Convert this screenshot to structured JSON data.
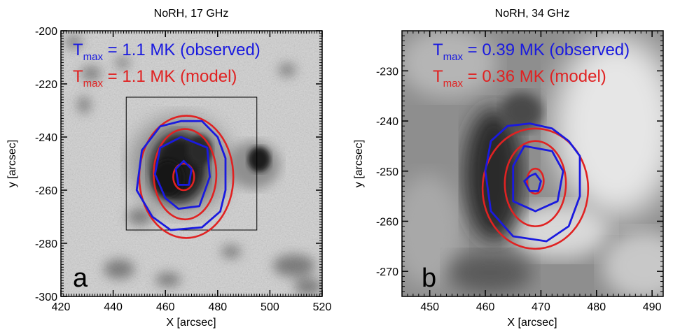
{
  "chart_data": [
    {
      "type": "contour",
      "title": "NoRH, 17 GHz",
      "xlabel": "X [arcsec]",
      "ylabel": "y [arcsec]",
      "xlim": [
        420,
        520
      ],
      "ylim": [
        -300,
        -200
      ],
      "xticks": [
        420,
        440,
        460,
        480,
        500,
        520
      ],
      "yticks": [
        -300,
        -280,
        -260,
        -240,
        -220,
        -200
      ],
      "panel_label": "a",
      "background": "grayscale brightness map (sunspot)",
      "annotations": [
        {
          "prefix": "T",
          "sub": "max",
          "text": " = 1.1 MK (observed)",
          "color": "#1a1adf"
        },
        {
          "prefix": "T",
          "sub": "max",
          "text": " = 1.1 MK (model)",
          "color": "#e02222"
        }
      ],
      "box": {
        "x": [
          445,
          495
        ],
        "y": [
          -275,
          -225
        ]
      },
      "model_contours": [
        {
          "center": [
            468,
            -255
          ],
          "rx": 18,
          "ry": 23
        },
        {
          "center": [
            467.5,
            -254
          ],
          "rx": 12,
          "ry": 17
        },
        {
          "center": [
            467,
            -255
          ],
          "rx": 4,
          "ry": 5
        }
      ],
      "observed_contours": [
        [
          [
            455,
            -270
          ],
          [
            449,
            -260
          ],
          [
            451,
            -245
          ],
          [
            458,
            -236
          ],
          [
            466,
            -234
          ],
          [
            474,
            -234
          ],
          [
            480,
            -240
          ],
          [
            483,
            -248
          ],
          [
            483,
            -260
          ],
          [
            481,
            -268
          ],
          [
            474,
            -274
          ],
          [
            462,
            -275
          ]
        ],
        [
          [
            460,
            -263
          ],
          [
            456,
            -254
          ],
          [
            458,
            -244
          ],
          [
            466,
            -240
          ],
          [
            476,
            -244
          ],
          [
            477,
            -255
          ],
          [
            473,
            -266
          ],
          [
            465,
            -267
          ]
        ],
        [
          [
            465,
            -258
          ],
          [
            464,
            -252
          ],
          [
            467,
            -249
          ],
          [
            470,
            -252
          ],
          [
            469,
            -258
          ]
        ]
      ]
    },
    {
      "type": "contour",
      "title": "NoRH, 34 GHz",
      "xlabel": "X [arcsec]",
      "ylabel": "y [arcsec]",
      "xlim": [
        445,
        492
      ],
      "ylim": [
        -275,
        -222
      ],
      "xticks": [
        450,
        460,
        470,
        480,
        490
      ],
      "yticks": [
        -270,
        -260,
        -250,
        -240,
        -230
      ],
      "panel_label": "b",
      "background": "grayscale brightness map (sunspot)",
      "annotations": [
        {
          "prefix": "T",
          "sub": "max",
          "text": " = 0.39 MK (observed)",
          "color": "#1a1adf"
        },
        {
          "prefix": "T",
          "sub": "max",
          "text": " = 0.36 MK (model)",
          "color": "#e02222"
        }
      ],
      "model_contours": [
        {
          "center": [
            469,
            -253.5
          ],
          "rx": 9.5,
          "ry": 12
        },
        {
          "center": [
            469,
            -252.5
          ],
          "rx": 5.5,
          "ry": 8.5
        },
        {
          "center": [
            469,
            -252
          ],
          "rx": 1.5,
          "ry": 2.5
        }
      ],
      "observed_contours": [
        [
          [
            461,
            -258
          ],
          [
            460,
            -250
          ],
          [
            461,
            -244
          ],
          [
            464,
            -241
          ],
          [
            468,
            -240.5
          ],
          [
            472,
            -241.5
          ],
          [
            475,
            -244
          ],
          [
            477,
            -247
          ],
          [
            477,
            -255
          ],
          [
            475,
            -261
          ],
          [
            471,
            -264
          ],
          [
            465,
            -263
          ]
        ],
        [
          [
            465,
            -256
          ],
          [
            465,
            -249
          ],
          [
            467,
            -245
          ],
          [
            472,
            -246
          ],
          [
            474,
            -250
          ],
          [
            473,
            -256
          ],
          [
            469,
            -258
          ]
        ],
        [
          [
            468,
            -254
          ],
          [
            467,
            -252
          ],
          [
            468,
            -251
          ],
          [
            469,
            -250.5
          ],
          [
            470,
            -252
          ],
          [
            469.5,
            -254
          ]
        ]
      ]
    }
  ],
  "colors": {
    "observed": "#1a1adf",
    "model": "#e02222",
    "frame": "#000000"
  }
}
